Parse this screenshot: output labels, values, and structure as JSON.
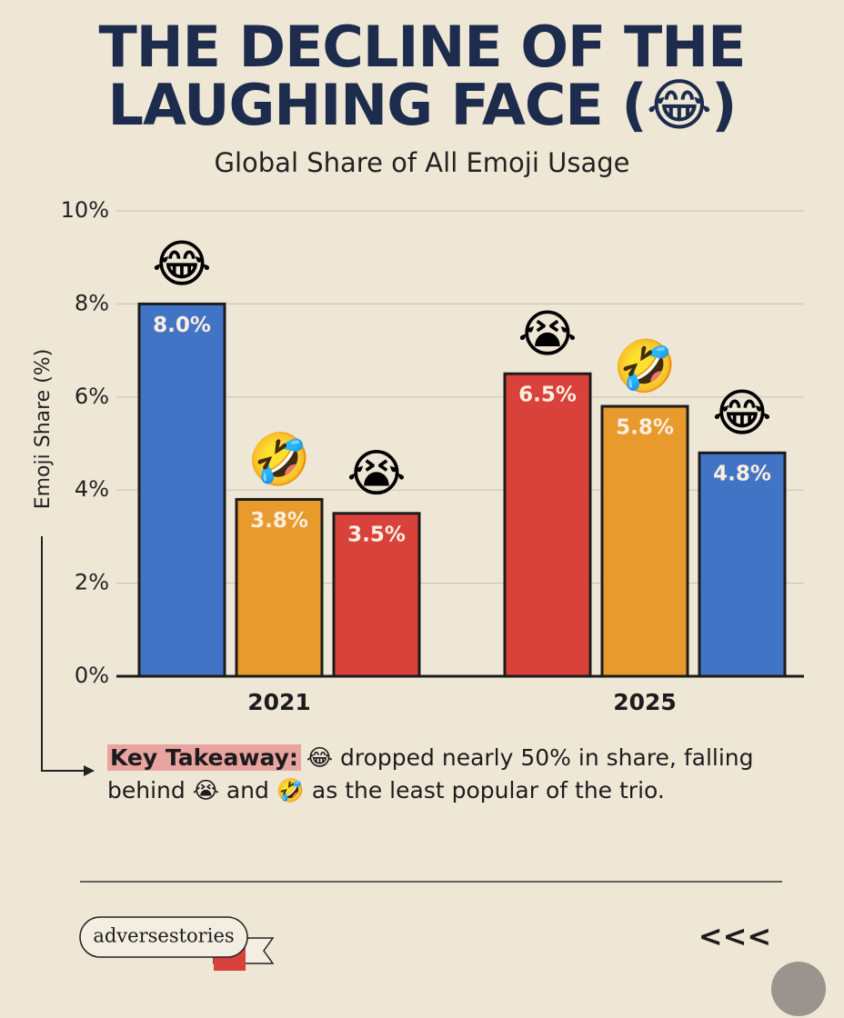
{
  "chart_data": {
    "type": "bar",
    "title": "THE DECLINE OF THE LAUGHING FACE (😂)",
    "subtitle": "Global Share of All Emoji Usage",
    "ylabel": "Emoji Share (%)",
    "ylim": [
      0,
      10
    ],
    "yticks": [
      {
        "value": 0,
        "label": "0%"
      },
      {
        "value": 2,
        "label": "2%"
      },
      {
        "value": 4,
        "label": "4%"
      },
      {
        "value": 6,
        "label": "6%"
      },
      {
        "value": 8,
        "label": "8%"
      },
      {
        "value": 10,
        "label": "10%"
      }
    ],
    "grid": true,
    "groups": [
      {
        "category": "2021",
        "bars": [
          {
            "label": "😂",
            "color": "#4274c6",
            "value": 8.0,
            "value_label": "8.0%"
          },
          {
            "label": "🤣",
            "color": "#e99a2c",
            "value": 3.8,
            "value_label": "3.8%"
          },
          {
            "label": "😭",
            "color": "#d9423b",
            "value": 3.5,
            "value_label": "3.5%"
          }
        ]
      },
      {
        "category": "2025",
        "bars": [
          {
            "label": "😭",
            "color": "#d9423b",
            "value": 6.5,
            "value_label": "6.5%"
          },
          {
            "label": "🤣",
            "color": "#e99a2c",
            "value": 5.8,
            "value_label": "5.8%"
          },
          {
            "label": "😂",
            "color": "#4274c6",
            "value": 4.8,
            "value_label": "4.8%"
          }
        ]
      }
    ],
    "key_takeaway": {
      "label": "Key Takeaway:",
      "text": "😂 dropped nearly 50% in share, falling behind 😭 and 🤣 as the least popular of the trio."
    }
  },
  "footer": {
    "brand": "adversestories",
    "nav": "<<<"
  }
}
